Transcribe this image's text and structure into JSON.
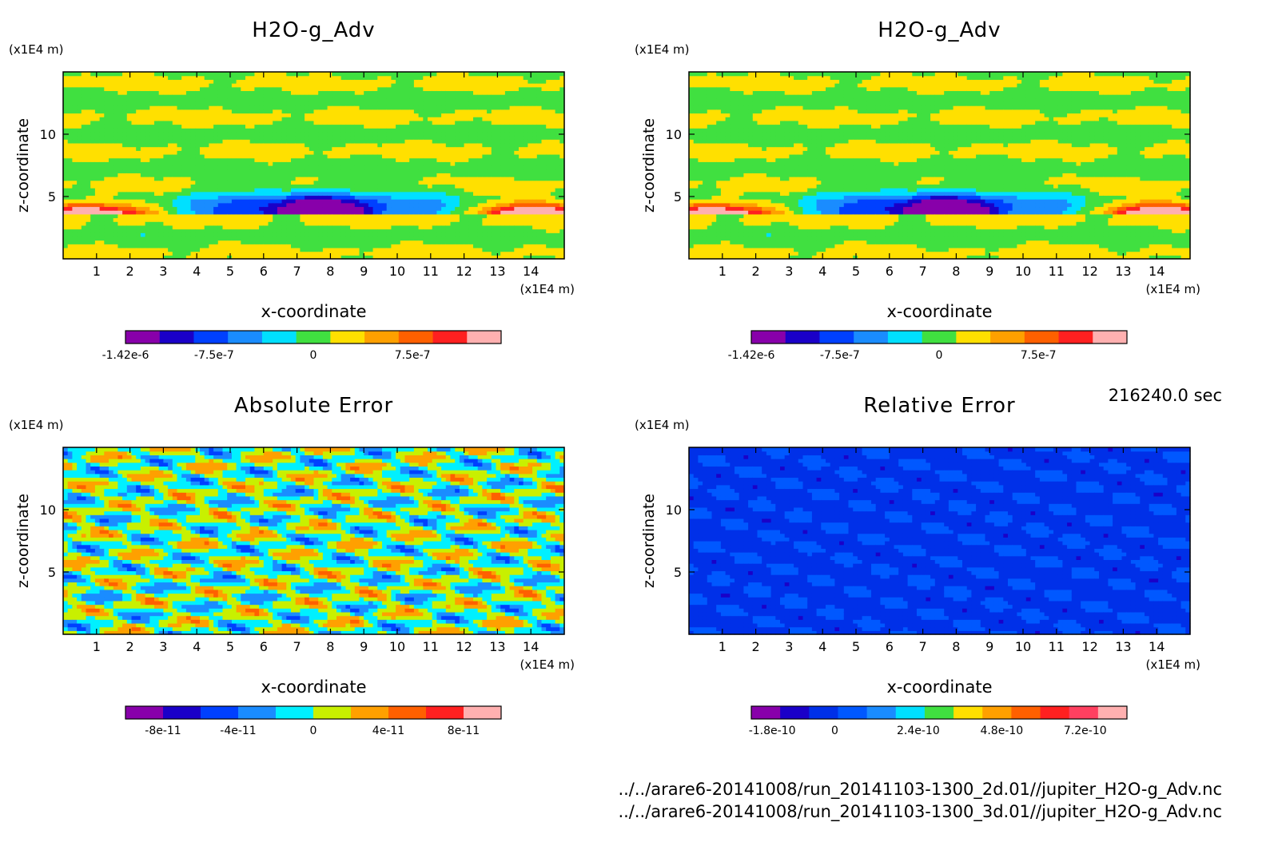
{
  "time_label": "216240.0 sec",
  "files": [
    "../../arare6-20141008/run_20141103-1300_2d.01//jupiter_H2O-g_Adv.nc",
    "../../arare6-20141008/run_20141103-1300_3d.01//jupiter_H2O-g_Adv.nc"
  ],
  "chart_data": [
    {
      "type": "heatmap",
      "title": "H2O-g_Adv",
      "xlabel": "x-coordinate",
      "ylabel": "z-coordinate",
      "x_unit": "(x1E4 m)",
      "y_unit": "(x1E4 m)",
      "xlim": [
        0,
        15
      ],
      "ylim": [
        0,
        15
      ],
      "x_ticks": [
        1,
        2,
        3,
        4,
        5,
        6,
        7,
        8,
        9,
        10,
        11,
        12,
        13,
        14
      ],
      "y_ticks": [
        5,
        10
      ],
      "pattern": "layers",
      "colorbar": {
        "colors": [
          "#8800aa",
          "#1a00c8",
          "#0040ff",
          "#1a8cff",
          "#00e0ff",
          "#40e040",
          "#ffe000",
          "#ffa000",
          "#ff6000",
          "#ff2020",
          "#ffb0b0"
        ],
        "tick_labels": [
          "-1.42e-6",
          "-7.5e-7",
          "0",
          "7.5e-7"
        ],
        "tick_values": [
          -1.42e-06,
          -7.5e-07,
          0,
          7.5e-07
        ],
        "range": [
          -1.42e-06,
          1.42e-06
        ]
      }
    },
    {
      "type": "heatmap",
      "title": "H2O-g_Adv",
      "xlabel": "x-coordinate",
      "ylabel": "z-coordinate",
      "x_unit": "(x1E4 m)",
      "y_unit": "(x1E4 m)",
      "xlim": [
        0,
        15
      ],
      "ylim": [
        0,
        15
      ],
      "x_ticks": [
        1,
        2,
        3,
        4,
        5,
        6,
        7,
        8,
        9,
        10,
        11,
        12,
        13,
        14
      ],
      "y_ticks": [
        5,
        10
      ],
      "pattern": "layers",
      "colorbar": {
        "colors": [
          "#8800aa",
          "#1a00c8",
          "#0040ff",
          "#1a8cff",
          "#00e0ff",
          "#40e040",
          "#ffe000",
          "#ffa000",
          "#ff6000",
          "#ff2020",
          "#ffb0b0"
        ],
        "tick_labels": [
          "-1.42e-6",
          "-7.5e-7",
          "0",
          "7.5e-7"
        ],
        "tick_values": [
          -1.42e-06,
          -7.5e-07,
          0,
          7.5e-07
        ],
        "range": [
          -1.42e-06,
          1.42e-06
        ]
      }
    },
    {
      "type": "heatmap",
      "title": "Absolute Error",
      "xlabel": "x-coordinate",
      "ylabel": "z-coordinate",
      "x_unit": "(x1E4 m)",
      "y_unit": "(x1E4 m)",
      "xlim": [
        0,
        15
      ],
      "ylim": [
        0,
        15
      ],
      "x_ticks": [
        1,
        2,
        3,
        4,
        5,
        6,
        7,
        8,
        9,
        10,
        11,
        12,
        13,
        14
      ],
      "y_ticks": [
        5,
        10
      ],
      "pattern": "abs",
      "colorbar": {
        "colors": [
          "#8800aa",
          "#1a00c8",
          "#0040ff",
          "#1a8cff",
          "#00f0ff",
          "#c8f000",
          "#ffa000",
          "#ff6000",
          "#ff2020",
          "#ffb0b0"
        ],
        "tick_labels": [
          "-8e-11",
          "-4e-11",
          "0",
          "4e-11",
          "8e-11"
        ],
        "tick_values": [
          -8e-11,
          -4e-11,
          0,
          4e-11,
          8e-11
        ],
        "range": [
          -1e-10,
          1e-10
        ]
      }
    },
    {
      "type": "heatmap",
      "title": "Relative Error",
      "xlabel": "x-coordinate",
      "ylabel": "z-coordinate",
      "x_unit": "(x1E4 m)",
      "y_unit": "(x1E4 m)",
      "xlim": [
        0,
        15
      ],
      "ylim": [
        0,
        15
      ],
      "x_ticks": [
        1,
        2,
        3,
        4,
        5,
        6,
        7,
        8,
        9,
        10,
        11,
        12,
        13,
        14
      ],
      "y_ticks": [
        5,
        10
      ],
      "pattern": "rel",
      "colorbar": {
        "colors": [
          "#8800aa",
          "#1a00c8",
          "#0030e8",
          "#0058ff",
          "#1a8cff",
          "#00e0ff",
          "#40e040",
          "#ffe000",
          "#ffa000",
          "#ff6000",
          "#ff2020",
          "#ff4060",
          "#ffb0b0"
        ],
        "tick_labels": [
          "-1.8e-10",
          "0",
          "2.4e-10",
          "4.8e-10",
          "7.2e-10"
        ],
        "tick_values": [
          -1.8e-10,
          0,
          2.4e-10,
          4.8e-10,
          7.2e-10
        ],
        "range": [
          -2.4e-10,
          8.4e-10
        ]
      }
    }
  ]
}
